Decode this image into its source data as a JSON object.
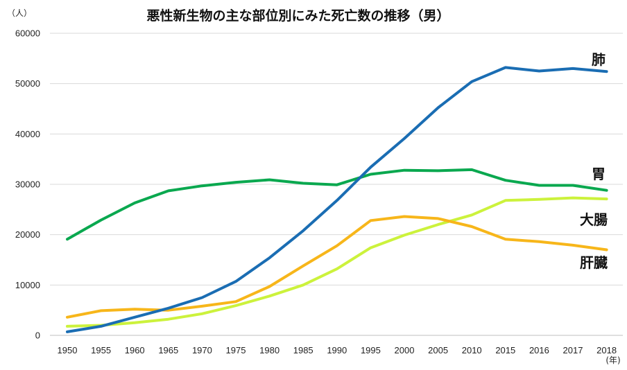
{
  "chart_data": {
    "type": "line",
    "title": "悪性新生物の主な部位別にみた死亡数の推移（男）",
    "ylabel": "（人）",
    "xlabel": "(年)",
    "categories": [
      "1950",
      "1955",
      "1960",
      "1965",
      "1970",
      "1975",
      "1980",
      "1985",
      "1990",
      "1995",
      "2000",
      "2005",
      "2010",
      "2015",
      "2016",
      "2017",
      "2018"
    ],
    "ylim": [
      0,
      60000
    ],
    "yticks": [
      0,
      10000,
      20000,
      30000,
      40000,
      50000,
      60000
    ],
    "ytick_labels": [
      "0",
      "10000",
      "20000",
      "30000",
      "40000",
      "50000",
      "60000"
    ],
    "grid": true,
    "legend": "inline labels at right end of lines",
    "series": [
      {
        "name": "肺",
        "color": "#1a6db3",
        "values": [
          700,
          1800,
          3600,
          5400,
          7500,
          10700,
          15400,
          20800,
          26800,
          33400,
          39100,
          45200,
          50400,
          53200,
          52500,
          53000,
          52400
        ]
      },
      {
        "name": "胃",
        "color": "#0aa84f",
        "values": [
          19100,
          22900,
          26300,
          28700,
          29700,
          30400,
          30900,
          30200,
          29900,
          32000,
          32800,
          32700,
          32900,
          30800,
          29800,
          29800,
          28800
        ]
      },
      {
        "name": "大腸",
        "color": "#ccf23c",
        "values": [
          1800,
          2000,
          2500,
          3200,
          4300,
          5900,
          7800,
          10000,
          13200,
          17400,
          19900,
          22000,
          23900,
          26800,
          27000,
          27300,
          27100
        ]
      },
      {
        "name": "肝臓",
        "color": "#f7b61a",
        "values": [
          3600,
          4900,
          5200,
          5000,
          5800,
          6700,
          9700,
          13800,
          17800,
          22800,
          23600,
          23200,
          21600,
          19100,
          18600,
          17900,
          17000
        ]
      }
    ]
  }
}
